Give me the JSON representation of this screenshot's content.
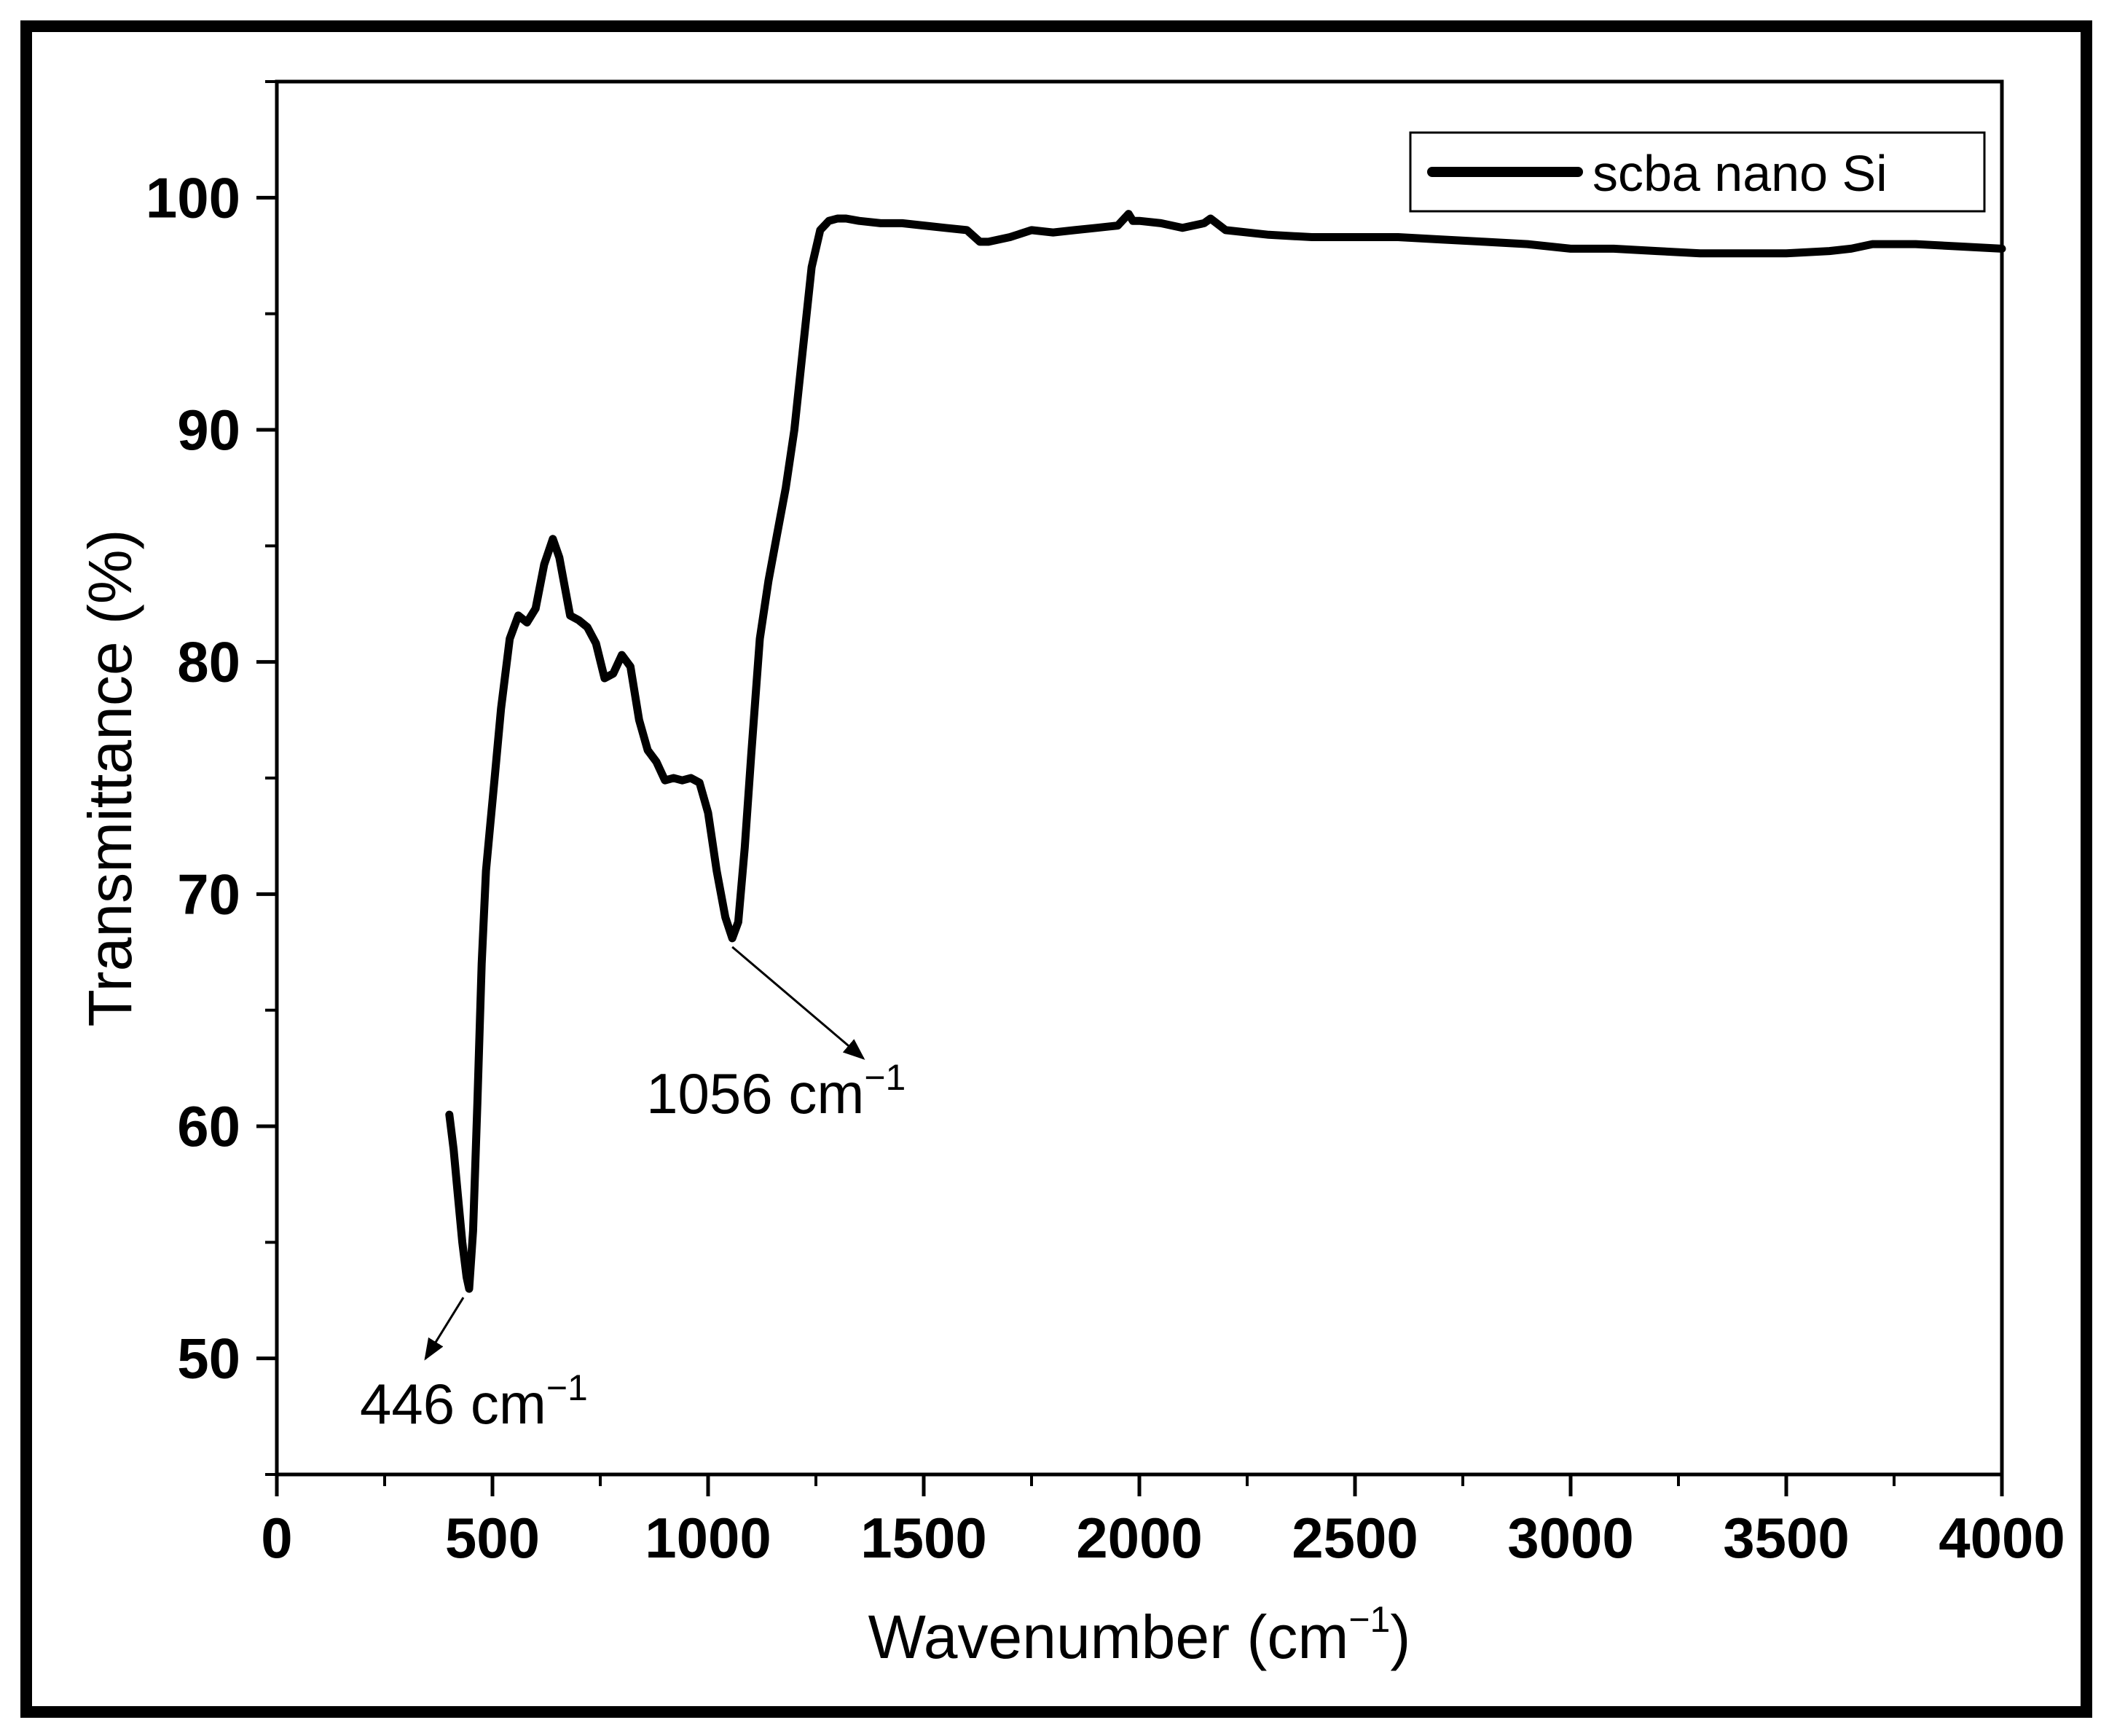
{
  "chart_data": {
    "type": "line",
    "title": "",
    "xlabel": "Wavenumber (cm",
    "xlabel_sup": "−1",
    "xlabel_suffix": ")",
    "ylabel": "Transmittance (%)",
    "xlim": [
      0,
      4000
    ],
    "ylim": [
      45,
      105
    ],
    "xticks": [
      0,
      500,
      1000,
      1500,
      2000,
      2500,
      3000,
      3500,
      4000
    ],
    "yticks": [
      50,
      60,
      70,
      80,
      90,
      100
    ],
    "legend": {
      "position": "top-right",
      "entries": [
        "scba nano Si"
      ]
    },
    "series": [
      {
        "name": "scba nano Si",
        "x": [
          400,
          410,
          420,
          430,
          440,
          446,
          455,
          465,
          475,
          485,
          495,
          505,
          520,
          540,
          560,
          580,
          600,
          620,
          640,
          655,
          665,
          680,
          700,
          720,
          740,
          760,
          780,
          800,
          820,
          840,
          860,
          880,
          900,
          920,
          940,
          960,
          980,
          1000,
          1020,
          1040,
          1056,
          1070,
          1085,
          1100,
          1120,
          1140,
          1160,
          1180,
          1200,
          1220,
          1240,
          1260,
          1280,
          1300,
          1320,
          1350,
          1400,
          1450,
          1500,
          1550,
          1600,
          1630,
          1650,
          1700,
          1750,
          1800,
          1850,
          1900,
          1950,
          1975,
          1985,
          2000,
          2050,
          2100,
          2150,
          2165,
          2200,
          2300,
          2400,
          2500,
          2600,
          2700,
          2800,
          2900,
          3000,
          3100,
          3200,
          3300,
          3400,
          3500,
          3600,
          3650,
          3700,
          3750,
          3800,
          3900,
          4000
        ],
        "y": [
          60.5,
          59.0,
          57.0,
          55.0,
          53.5,
          53.0,
          55.5,
          61.0,
          67.0,
          71.0,
          73.0,
          75.0,
          78.0,
          81.0,
          82.0,
          81.7,
          82.3,
          84.2,
          85.3,
          84.5,
          83.5,
          82.0,
          81.8,
          81.5,
          80.8,
          79.3,
          79.5,
          80.3,
          79.8,
          77.5,
          76.2,
          75.7,
          74.9,
          75.0,
          74.9,
          75.0,
          74.8,
          73.5,
          71.0,
          69.0,
          68.1,
          68.8,
          72.0,
          76.0,
          81.0,
          83.5,
          85.5,
          87.5,
          90.0,
          93.5,
          97.0,
          98.6,
          99.0,
          99.1,
          99.1,
          99.0,
          98.9,
          98.9,
          98.8,
          98.7,
          98.6,
          98.1,
          98.1,
          98.3,
          98.6,
          98.5,
          98.6,
          98.7,
          98.8,
          99.3,
          99.0,
          99.0,
          98.9,
          98.7,
          98.9,
          99.1,
          98.6,
          98.4,
          98.3,
          98.3,
          98.3,
          98.2,
          98.1,
          98.0,
          97.8,
          97.8,
          97.7,
          97.6,
          97.6,
          97.6,
          97.7,
          97.8,
          98.0,
          98.0,
          98.0,
          97.9,
          97.8
        ]
      }
    ],
    "annotations": [
      {
        "text": "446 cm",
        "sup": "−1",
        "x": 446,
        "y": 53.0
      },
      {
        "text": "1056 cm",
        "sup": "−1",
        "x": 1056,
        "y": 68.1
      }
    ]
  }
}
